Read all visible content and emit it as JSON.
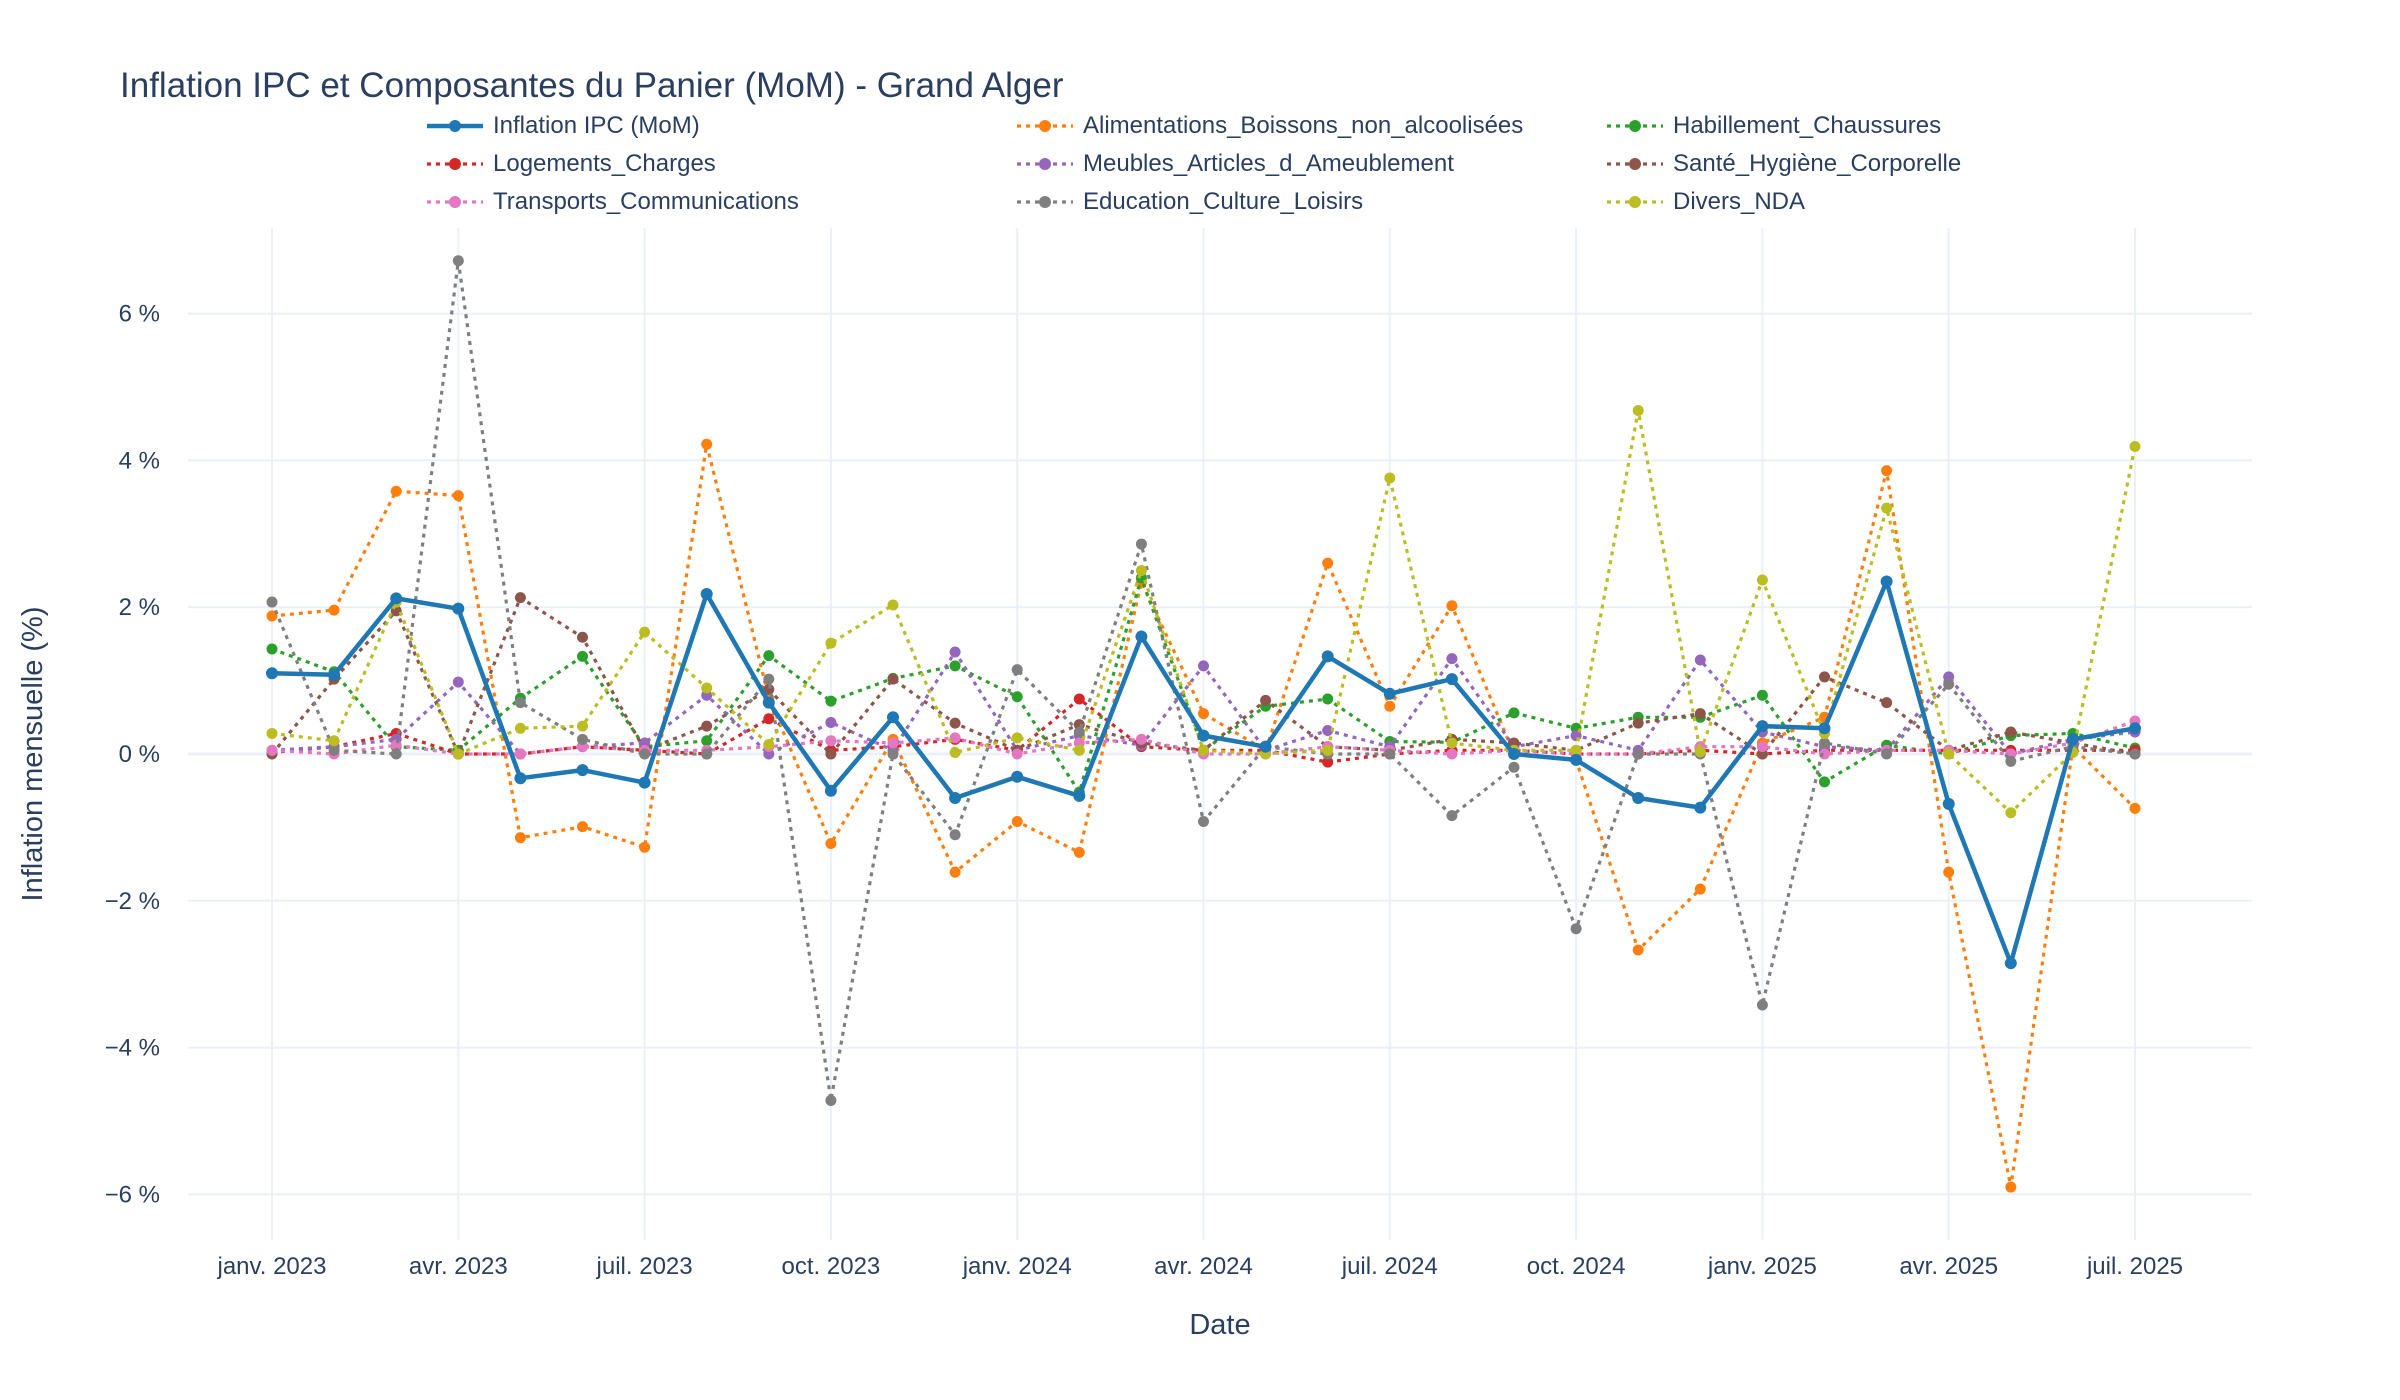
{
  "chart_data": {
    "type": "line",
    "title": "Inflation IPC et Composantes du Panier (MoM) - Grand Alger",
    "xlabel": "Date",
    "ylabel": "Inflation mensuelle (%)",
    "ylim": [
      -6.6,
      7.4
    ],
    "y_ticks": [
      -6,
      -4,
      -2,
      0,
      2,
      4,
      6
    ],
    "y_tick_labels": [
      "−6 %",
      "−4 %",
      "−2 %",
      "0 %",
      "2 %",
      "4 %",
      "6 %"
    ],
    "x_ticks": [
      0,
      3,
      6,
      9,
      12,
      15,
      18,
      21,
      24,
      27,
      30
    ],
    "x_tick_labels": [
      "janv. 2023",
      "avr. 2023",
      "juil. 2023",
      "oct. 2023",
      "janv. 2024",
      "avr. 2024",
      "juil. 2024",
      "oct. 2024",
      "janv. 2025",
      "avr. 2025",
      "juil. 2025"
    ],
    "x": [
      "2023-01",
      "2023-02",
      "2023-03",
      "2023-04",
      "2023-05",
      "2023-06",
      "2023-07",
      "2023-08",
      "2023-09",
      "2023-10",
      "2023-11",
      "2023-12",
      "2024-01",
      "2024-02",
      "2024-03",
      "2024-04",
      "2024-05",
      "2024-06",
      "2024-07",
      "2024-08",
      "2024-09",
      "2024-10",
      "2024-11",
      "2024-12",
      "2025-01",
      "2025-02",
      "2025-03",
      "2025-04",
      "2025-05",
      "2025-06",
      "2025-07"
    ],
    "grid": true,
    "legend_position": "top",
    "series": [
      {
        "name": "Inflation IPC (MoM)",
        "color": "#1f77b4",
        "style": "solid",
        "values": [
          1.1,
          1.08,
          2.12,
          1.98,
          -0.33,
          -0.22,
          -0.39,
          2.18,
          0.7,
          -0.5,
          0.5,
          -0.6,
          -0.31,
          -0.57,
          1.6,
          0.25,
          0.1,
          1.33,
          0.82,
          1.02,
          0.0,
          -0.08,
          -0.6,
          -0.73,
          0.38,
          0.35,
          2.35,
          -0.68,
          -2.85,
          0.2,
          0.35
        ]
      },
      {
        "name": "Alimentations_Boissons_non_alcoolisées",
        "color": "#ff7f0e",
        "style": "dot",
        "values": [
          1.88,
          1.96,
          3.58,
          3.52,
          -1.14,
          -0.99,
          -1.27,
          4.22,
          0.76,
          -1.22,
          0.2,
          -1.61,
          -0.92,
          -1.34,
          2.34,
          0.55,
          0.05,
          2.6,
          0.65,
          2.02,
          0.0,
          -0.08,
          -2.67,
          -1.84,
          0.15,
          0.5,
          3.86,
          -1.61,
          -5.9,
          0.1,
          -0.74
        ]
      },
      {
        "name": "Habillement_Chaussures",
        "color": "#2ca02c",
        "style": "dot",
        "values": [
          1.43,
          1.12,
          0.1,
          0.05,
          0.76,
          1.33,
          0.1,
          0.18,
          1.34,
          0.72,
          1.03,
          1.2,
          0.78,
          -0.52,
          2.4,
          0.05,
          0.65,
          0.75,
          0.17,
          0.16,
          0.56,
          0.35,
          0.5,
          0.5,
          0.8,
          -0.38,
          0.12,
          0.0,
          0.25,
          0.28,
          0.08
        ]
      },
      {
        "name": "Logements_Charges",
        "color": "#d62728",
        "style": "dot",
        "values": [
          0.02,
          0.1,
          0.28,
          0.0,
          0.0,
          0.1,
          0.05,
          0.0,
          0.48,
          0.05,
          0.1,
          0.2,
          0.05,
          0.75,
          0.1,
          0.05,
          0.05,
          -0.11,
          0.0,
          0.05,
          0.05,
          0.0,
          0.0,
          0.05,
          0.0,
          0.05,
          0.05,
          0.05,
          0.05,
          0.05,
          0.05
        ]
      },
      {
        "name": "Meubles_Articles_d_Ameublement",
        "color": "#9467bd",
        "style": "dot",
        "values": [
          0.05,
          0.1,
          0.2,
          0.98,
          0.0,
          0.1,
          0.15,
          0.8,
          0.0,
          0.43,
          0.05,
          1.39,
          0.05,
          0.25,
          0.12,
          1.2,
          0.05,
          0.32,
          0.1,
          1.3,
          0.1,
          0.25,
          0.05,
          1.28,
          0.3,
          0.1,
          0.05,
          1.05,
          0.0,
          0.2,
          0.3
        ]
      },
      {
        "name": "Santé_Hygiène_Corporelle",
        "color": "#8c564b",
        "style": "dot",
        "values": [
          0.0,
          1.02,
          1.95,
          0.0,
          2.13,
          1.59,
          0.05,
          0.38,
          0.88,
          0.0,
          1.02,
          0.42,
          0.05,
          0.4,
          0.15,
          0.05,
          0.73,
          0.1,
          0.05,
          0.2,
          0.15,
          0.05,
          0.42,
          0.55,
          0.0,
          1.05,
          0.7,
          0.05,
          0.3,
          0.15,
          0.0
        ]
      },
      {
        "name": "Transports_Communications",
        "color": "#e377c2",
        "style": "dot",
        "values": [
          0.05,
          0.0,
          0.12,
          0.0,
          0.0,
          0.1,
          0.05,
          0.05,
          0.1,
          0.18,
          0.15,
          0.22,
          0.0,
          0.15,
          0.2,
          0.0,
          0.0,
          0.1,
          0.05,
          0.0,
          0.05,
          0.0,
          0.0,
          0.1,
          0.1,
          0.0,
          0.05,
          0.05,
          0.0,
          0.15,
          0.45
        ]
      },
      {
        "name": "Education_Culture_Loisirs",
        "color": "#7f7f7f",
        "style": "dot",
        "values": [
          2.07,
          0.05,
          0.0,
          6.72,
          0.7,
          0.2,
          0.0,
          0.0,
          1.02,
          -4.72,
          0.0,
          -1.1,
          1.15,
          0.3,
          2.86,
          -0.92,
          0.1,
          0.0,
          0.0,
          -0.84,
          -0.18,
          -2.38,
          0.0,
          0.0,
          -3.42,
          0.15,
          0.0,
          0.95,
          -0.1,
          0.1,
          0.0
        ]
      },
      {
        "name": "Divers_NDA",
        "color": "#bcbd22",
        "style": "dot",
        "values": [
          0.28,
          0.18,
          2.07,
          0.0,
          0.35,
          0.38,
          1.66,
          0.9,
          0.13,
          1.51,
          2.03,
          0.02,
          0.22,
          0.05,
          2.5,
          0.05,
          0.0,
          0.05,
          3.76,
          0.15,
          0.05,
          0.05,
          4.68,
          0.03,
          2.37,
          0.28,
          3.35,
          0.0,
          -0.8,
          0.02,
          4.19
        ]
      }
    ]
  }
}
